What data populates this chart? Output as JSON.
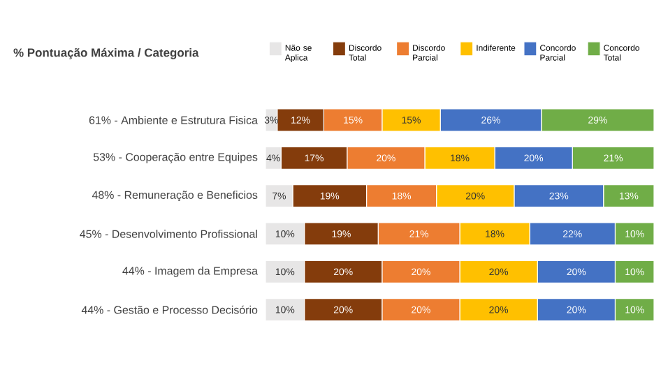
{
  "chart_data": {
    "type": "bar",
    "orientation": "horizontal",
    "stacked": true,
    "title": "% Pontuação Máxima / Categoria",
    "categories": [
      "61% - Ambiente e Estrutura Fisica",
      "53% - Cooperação entre Equipes",
      "48% - Remuneração e Beneficios",
      "45% - Desenvolvimento Profissional",
      "44% - Imagem da Empresa",
      "44% - Gestão e Processo Decisório"
    ],
    "xlim": [
      0,
      100
    ],
    "tick_labels": "y",
    "legend": "top right",
    "series": [
      {
        "name": "Não se Aplica",
        "color": "#e7e6e6",
        "values": [
          3,
          4,
          7,
          10,
          10,
          10
        ],
        "value_labels": [
          "3%",
          "4%",
          "7%",
          "10%",
          "10%",
          "10%"
        ]
      },
      {
        "name": "Discordo Total",
        "color": "#843c0c",
        "values": [
          12,
          17,
          19,
          19,
          20,
          20
        ],
        "value_labels": [
          "12%",
          "17%",
          "19%",
          "19%",
          "20%",
          "20%"
        ]
      },
      {
        "name": "Discordo Parcial",
        "color": "#ed7d31",
        "values": [
          15,
          20,
          18,
          21,
          20,
          20
        ],
        "value_labels": [
          "15%",
          "20%",
          "18%",
          "21%",
          "20%",
          "20%"
        ]
      },
      {
        "name": "Indiferente",
        "color": "#ffc000",
        "values": [
          15,
          18,
          20,
          18,
          20,
          20
        ],
        "value_labels": [
          "15%",
          "18%",
          "20%",
          "18%",
          "20%",
          "20%"
        ]
      },
      {
        "name": "Concordo Parcial",
        "color": "#4472c4",
        "values": [
          26,
          20,
          23,
          22,
          20,
          20
        ],
        "value_labels": [
          "26%",
          "20%",
          "23%",
          "22%",
          "20%",
          "20%"
        ]
      },
      {
        "name": "Concordo Total",
        "color": "#70ad47",
        "values": [
          29,
          21,
          13,
          10,
          10,
          10
        ],
        "value_labels": [
          "29%",
          "21%",
          "13%",
          "10%",
          "10%",
          "10%"
        ]
      }
    ]
  }
}
